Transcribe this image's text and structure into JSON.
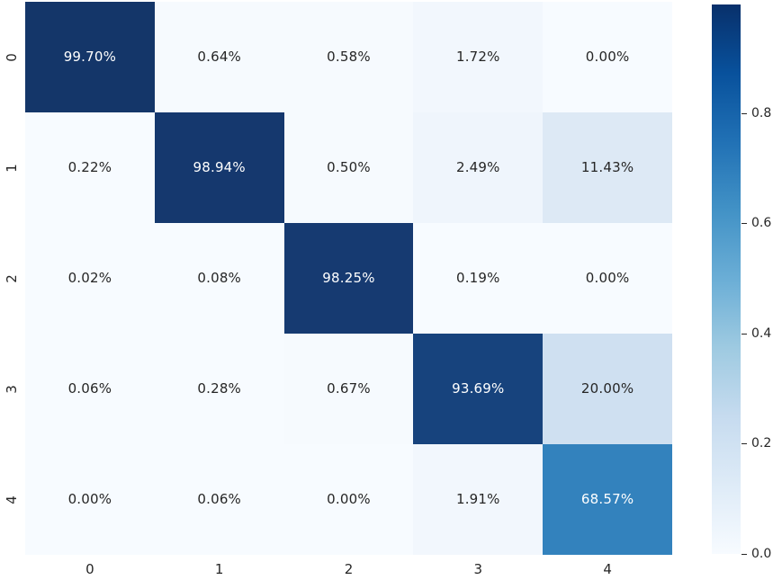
{
  "chart_data": {
    "type": "heatmap",
    "title": "",
    "xlabel": "",
    "ylabel": "",
    "x_labels": [
      "0",
      "1",
      "2",
      "3",
      "4"
    ],
    "y_labels": [
      "0",
      "1",
      "2",
      "3",
      "4"
    ],
    "cell_text": [
      [
        "99.70%",
        "0.64%",
        "0.58%",
        "1.72%",
        "0.00%"
      ],
      [
        "0.22%",
        "98.94%",
        "0.50%",
        "2.49%",
        "11.43%"
      ],
      [
        "0.02%",
        "0.08%",
        "98.25%",
        "0.19%",
        "0.00%"
      ],
      [
        "0.06%",
        "0.28%",
        "0.67%",
        "93.69%",
        "20.00%"
      ],
      [
        "0.00%",
        "0.06%",
        "0.00%",
        "1.91%",
        "68.57%"
      ]
    ],
    "values": [
      [
        0.997,
        0.0064,
        0.0058,
        0.0172,
        0.0
      ],
      [
        0.0022,
        0.9894,
        0.005,
        0.0249,
        0.1143
      ],
      [
        0.0002,
        0.0008,
        0.9825,
        0.0019,
        0.0
      ],
      [
        0.0006,
        0.0028,
        0.0067,
        0.9369,
        0.2
      ],
      [
        0.0,
        0.0006,
        0.0,
        0.0191,
        0.6857
      ]
    ],
    "cell_colors": [
      [
        "#143669",
        "#f6fafe",
        "#f6fafe",
        "#f2f7fd",
        "#f7fbff"
      ],
      [
        "#f7fbff",
        "#15386e",
        "#f6fafe",
        "#eff5fc",
        "#dde9f5"
      ],
      [
        "#f7fbff",
        "#f7fbff",
        "#163a71",
        "#f7fbff",
        "#f7fbff"
      ],
      [
        "#f7fbff",
        "#f7fbff",
        "#f6fafe",
        "#17437d",
        "#cfe0f1"
      ],
      [
        "#f7fbff",
        "#f7fbff",
        "#f7fbff",
        "#f2f7fd",
        "#3382bd"
      ]
    ],
    "cell_text_colors": [
      [
        "#ffffff",
        "#262626",
        "#262626",
        "#262626",
        "#262626"
      ],
      [
        "#262626",
        "#ffffff",
        "#262626",
        "#262626",
        "#262626"
      ],
      [
        "#262626",
        "#262626",
        "#ffffff",
        "#262626",
        "#262626"
      ],
      [
        "#262626",
        "#262626",
        "#262626",
        "#ffffff",
        "#262626"
      ],
      [
        "#262626",
        "#262626",
        "#262626",
        "#262626",
        "#ffffff"
      ]
    ],
    "colormap": {
      "name": "Blues",
      "stops": [
        "#f7fbff",
        "#deebf7",
        "#c6dbef",
        "#9ecae1",
        "#6baed6",
        "#4292c6",
        "#2171b5",
        "#08519c",
        "#08306b"
      ]
    },
    "colorbar": {
      "vmin": 0.0,
      "vmax": 0.997,
      "ticks": [
        {
          "label": "0.8",
          "value": 0.8
        },
        {
          "label": "0.6",
          "value": 0.6
        },
        {
          "label": "0.4",
          "value": 0.4
        },
        {
          "label": "0.2",
          "value": 0.2
        },
        {
          "label": "0.0",
          "value": 0.0
        }
      ]
    },
    "legend": "none",
    "grid": "off"
  }
}
